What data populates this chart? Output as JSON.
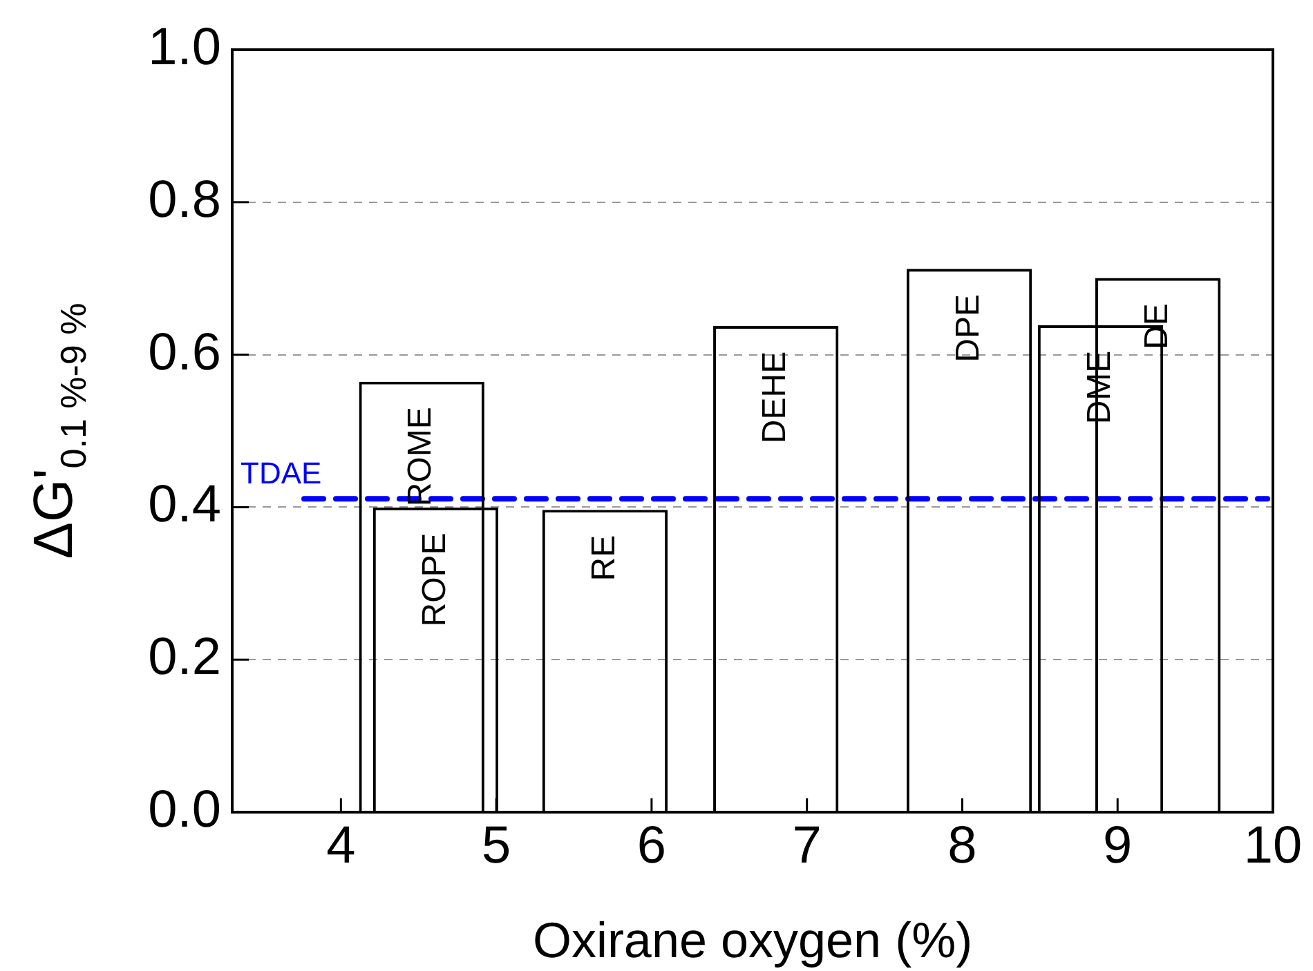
{
  "chart_data": {
    "type": "bar",
    "xlabel": "Oxirane oxygen (%)",
    "ylabel": "ΔG'$_{0.1 %-9 %}$",
    "x": [
      4.52,
      4.61,
      5.7,
      6.8,
      8.045,
      8.89,
      9.26
    ],
    "values": [
      0.564,
      0.399,
      0.396,
      0.637,
      0.712,
      0.638,
      0.7
    ],
    "color": "#000000",
    "xlim": [
      3.3,
      10
    ],
    "xticks": [
      4,
      5,
      6,
      7,
      8,
      9,
      10
    ],
    "ylim": [
      0,
      1
    ],
    "yticks": [
      {
        "value": 0,
        "label": "0.0"
      },
      {
        "value": 0.2,
        "label": "0.2"
      },
      {
        "value": 0.4,
        "label": "0.4"
      },
      {
        "value": 0.6,
        "label": "0.6"
      },
      {
        "value": 0.8,
        "label": "0.8"
      },
      {
        "value": 1,
        "label": "1.0"
      }
    ],
    "grid": "y",
    "ref_lines": [
      {
        "axis": "y",
        "value": 0.411,
        "label": "TDAE",
        "color": "#0000ff",
        "line_style": "dashed"
      }
    ],
    "annotations": [
      {
        "text": "ROME",
        "x": 4.52,
        "y": 0.564
      },
      {
        "text": "ROPE",
        "x": 4.61,
        "y": 0.399
      },
      {
        "text": "RE",
        "x": 5.7,
        "y": 0.396
      },
      {
        "text": "DEHE",
        "x": 6.8,
        "y": 0.637
      },
      {
        "text": "DPE",
        "x": 8.045,
        "y": 0.712
      },
      {
        "text": "DME",
        "x": 8.89,
        "y": 0.638
      },
      {
        "text": "DE",
        "x": 9.26,
        "y": 0.7
      }
    ]
  }
}
